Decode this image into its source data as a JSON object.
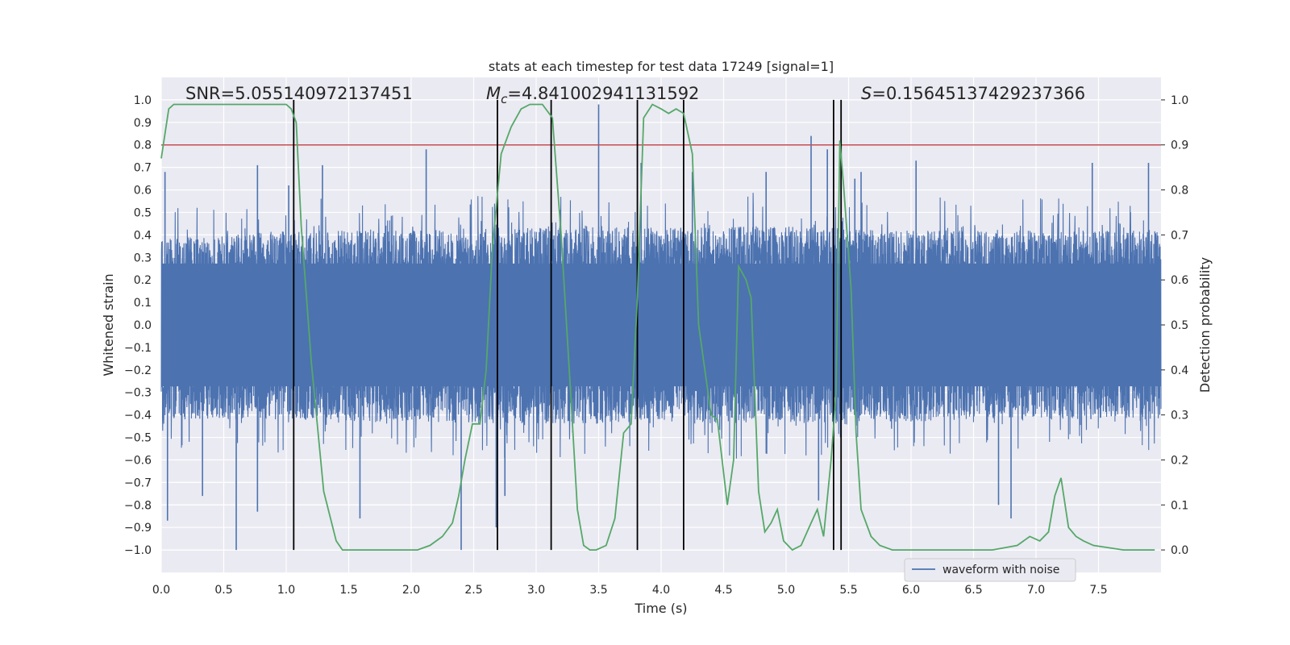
{
  "chart_data": {
    "type": "line",
    "title": "stats at each timestep for test data 17249 [signal=1]",
    "xlabel": "Time (s)",
    "ylabel": "Whitened strain",
    "y2label": "Detection probability",
    "xlim": [
      0.0,
      8.0
    ],
    "ylim": [
      -1.1,
      1.1
    ],
    "y2lim": [
      -0.05,
      1.05
    ],
    "xticks": [
      "0.0",
      "0.5",
      "1.0",
      "1.5",
      "2.0",
      "2.5",
      "3.0",
      "3.5",
      "4.0",
      "4.5",
      "5.0",
      "5.5",
      "6.0",
      "6.5",
      "7.0",
      "7.5"
    ],
    "yticks": [
      "1.0",
      "0.9",
      "0.8",
      "0.7",
      "0.6",
      "0.5",
      "0.4",
      "0.3",
      "0.2",
      "0.1",
      "0.0",
      "−0.1",
      "−0.2",
      "−0.3",
      "−0.4",
      "−0.5",
      "−0.6",
      "−0.7",
      "−0.8",
      "−0.9",
      "−1.0"
    ],
    "y2ticks": [
      "1.0",
      "0.9",
      "0.8",
      "0.7",
      "0.6",
      "0.5",
      "0.4",
      "0.3",
      "0.2",
      "0.1",
      "0.0"
    ],
    "grid": true,
    "legend": {
      "position": "bottom-right",
      "entries": [
        "waveform with noise"
      ]
    },
    "annotations": {
      "snr": "SNR=5.055140972137451",
      "mc_symbol": "M",
      "mc_subscript": "c",
      "mc_value": "=4.841002941131592",
      "s_symbol": "S",
      "s_value": "=0.15645137429237366"
    },
    "threshold_y2": 0.9,
    "vertical_lines_x": [
      1.06,
      2.69,
      3.12,
      3.81,
      4.18,
      5.38,
      5.44
    ],
    "vertical_lines_y2_range": [
      0.0,
      1.0
    ],
    "waveform_envelope": [
      [
        0.0,
        0.38,
        -0.42
      ],
      [
        0.5,
        0.4,
        -0.42
      ],
      [
        1.0,
        0.42,
        -0.42
      ],
      [
        1.5,
        0.42,
        -0.43
      ],
      [
        2.0,
        0.42,
        -0.43
      ],
      [
        2.5,
        0.43,
        -0.44
      ],
      [
        3.0,
        0.43,
        -0.44
      ],
      [
        3.5,
        0.44,
        -0.44
      ],
      [
        4.0,
        0.43,
        -0.43
      ],
      [
        4.5,
        0.44,
        -0.44
      ],
      [
        5.0,
        0.44,
        -0.44
      ],
      [
        5.5,
        0.43,
        -0.43
      ],
      [
        6.0,
        0.42,
        -0.43
      ],
      [
        6.5,
        0.42,
        -0.42
      ],
      [
        7.0,
        0.42,
        -0.42
      ],
      [
        7.5,
        0.42,
        -0.42
      ],
      [
        8.0,
        0.42,
        -0.42
      ]
    ],
    "waveform_spikes": [
      [
        0.03,
        0.68
      ],
      [
        0.05,
        -0.87
      ],
      [
        0.33,
        -0.76
      ],
      [
        0.6,
        -1.0
      ],
      [
        0.77,
        0.71
      ],
      [
        0.77,
        -0.83
      ],
      [
        1.02,
        0.62
      ],
      [
        1.29,
        0.71
      ],
      [
        1.59,
        -0.86
      ],
      [
        2.12,
        0.78
      ],
      [
        2.4,
        -1.0
      ],
      [
        2.68,
        -0.9
      ],
      [
        2.75,
        -0.76
      ],
      [
        3.5,
        0.98
      ],
      [
        3.84,
        0.72
      ],
      [
        4.25,
        0.68
      ],
      [
        4.84,
        0.68
      ],
      [
        5.2,
        0.84
      ],
      [
        5.26,
        -0.78
      ],
      [
        5.33,
        0.78
      ],
      [
        5.55,
        0.65
      ],
      [
        5.6,
        0.68
      ],
      [
        6.04,
        0.73
      ],
      [
        6.7,
        -0.8
      ],
      [
        6.8,
        -0.86
      ],
      [
        7.45,
        0.72
      ],
      [
        7.9,
        0.72
      ]
    ],
    "series": [
      {
        "name": "waveform with noise",
        "color": "#4c72b0",
        "axis": "left"
      },
      {
        "color": "#55a868",
        "axis": "right",
        "x": [
          0.0,
          0.06,
          0.1,
          0.2,
          0.5,
          0.8,
          1.0,
          1.04,
          1.08,
          1.12,
          1.2,
          1.3,
          1.4,
          1.45,
          1.55,
          1.7,
          1.9,
          2.05,
          2.15,
          2.25,
          2.33,
          2.38,
          2.43,
          2.49,
          2.55,
          2.6,
          2.65,
          2.72,
          2.8,
          2.88,
          2.95,
          3.0,
          3.05,
          3.13,
          3.2,
          3.28,
          3.33,
          3.38,
          3.43,
          3.48,
          3.56,
          3.63,
          3.7,
          3.76,
          3.81,
          3.86,
          3.93,
          4.0,
          4.06,
          4.12,
          4.18,
          4.25,
          4.3,
          4.4,
          4.45,
          4.53,
          4.58,
          4.62,
          4.68,
          4.72,
          4.78,
          4.83,
          4.88,
          4.93,
          4.98,
          5.05,
          5.12,
          5.2,
          5.25,
          5.3,
          5.36,
          5.4,
          5.43,
          5.46,
          5.52,
          5.56,
          5.6,
          5.68,
          5.75,
          5.85,
          6.1,
          6.4,
          6.65,
          6.85,
          6.95,
          7.03,
          7.1,
          7.15,
          7.2,
          7.26,
          7.32,
          7.38,
          7.46,
          7.7,
          7.95
        ],
        "y": [
          0.87,
          0.98,
          0.99,
          0.99,
          0.99,
          0.99,
          0.99,
          0.98,
          0.95,
          0.72,
          0.42,
          0.13,
          0.02,
          0.0,
          0.0,
          0.0,
          0.0,
          0.0,
          0.01,
          0.03,
          0.06,
          0.12,
          0.2,
          0.28,
          0.28,
          0.4,
          0.67,
          0.88,
          0.94,
          0.98,
          0.99,
          0.99,
          0.99,
          0.96,
          0.7,
          0.33,
          0.09,
          0.01,
          0.0,
          0.0,
          0.01,
          0.07,
          0.26,
          0.28,
          0.56,
          0.96,
          0.99,
          0.98,
          0.97,
          0.98,
          0.97,
          0.88,
          0.5,
          0.3,
          0.29,
          0.1,
          0.2,
          0.63,
          0.6,
          0.56,
          0.13,
          0.04,
          0.06,
          0.09,
          0.02,
          0.0,
          0.01,
          0.06,
          0.09,
          0.03,
          0.2,
          0.35,
          0.91,
          0.81,
          0.58,
          0.26,
          0.09,
          0.03,
          0.01,
          0.0,
          0.0,
          0.0,
          0.0,
          0.01,
          0.03,
          0.02,
          0.04,
          0.12,
          0.16,
          0.05,
          0.03,
          0.02,
          0.01,
          0.0,
          0.0
        ]
      }
    ]
  }
}
